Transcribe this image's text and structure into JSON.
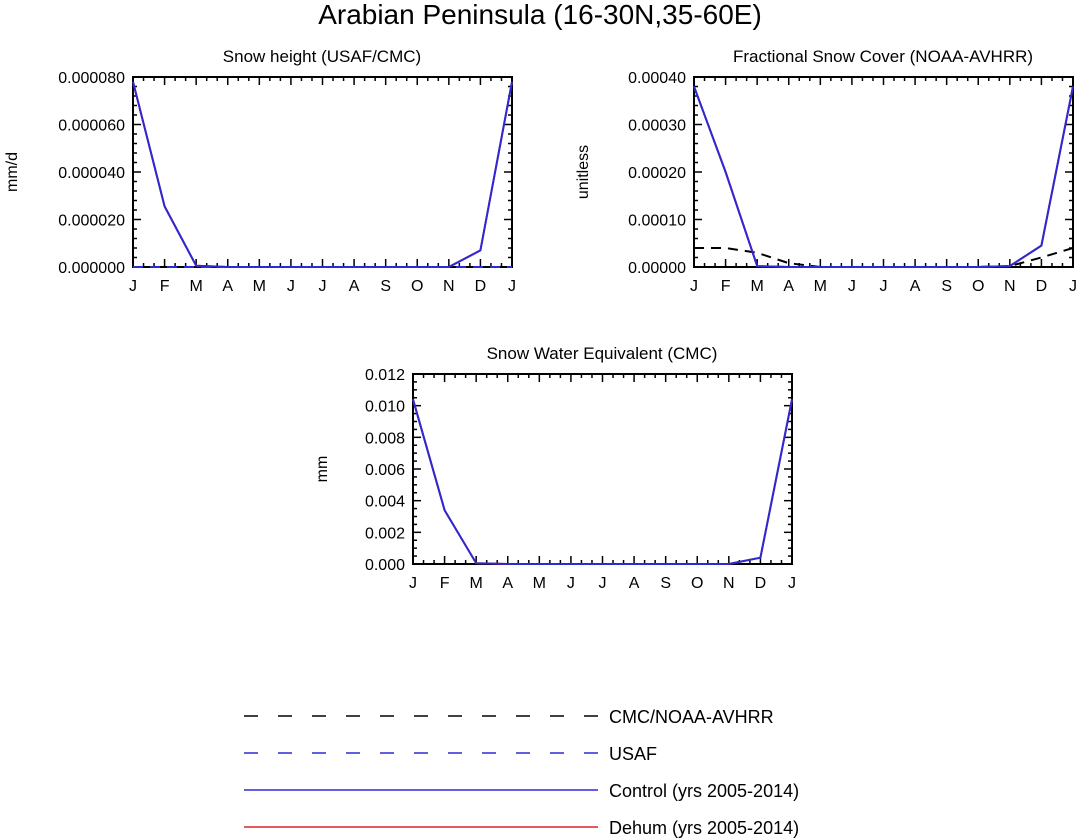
{
  "title": "Arabian Peninsula (16-30N,35-60E)",
  "months": [
    "J",
    "F",
    "M",
    "A",
    "M",
    "J",
    "J",
    "A",
    "S",
    "O",
    "N",
    "D",
    "J"
  ],
  "series_styles": {
    "obs_cmc": {
      "color": "#000000",
      "dash": "10,7"
    },
    "obs_usaf": {
      "color": "#2a2ad6",
      "dash": "10,7"
    },
    "control": {
      "color": "#2a2ad6",
      "dash": ""
    },
    "dehum": {
      "color": "#e02020",
      "dash": ""
    }
  },
  "legend": [
    {
      "key": "obs_cmc",
      "label": "CMC/NOAA-AVHRR"
    },
    {
      "key": "obs_usaf",
      "label": "USAF"
    },
    {
      "key": "control",
      "label": "Control (yrs 2005-2014)"
    },
    {
      "key": "dehum",
      "label": "Dehum (yrs 2005-2014)"
    }
  ],
  "chart_data": [
    {
      "type": "line",
      "title": "Snow height (USAF/CMC)",
      "ylabel": "mm/d",
      "xlabel": "",
      "ylim": [
        0,
        8e-05
      ],
      "yticks": [
        0,
        2e-05,
        4e-05,
        6e-05,
        8e-05
      ],
      "ytick_labels": [
        "0.000000",
        "0.000020",
        "0.000040",
        "0.000060",
        "0.000080"
      ],
      "categories": [
        "J",
        "F",
        "M",
        "A",
        "M",
        "J",
        "J",
        "A",
        "S",
        "O",
        "N",
        "D",
        "J"
      ],
      "series": [
        {
          "name": "USAF",
          "key": "obs_usaf",
          "values": [
            0,
            0,
            0,
            0,
            0,
            0,
            0,
            0,
            0,
            0,
            0,
            0,
            0
          ]
        },
        {
          "name": "Dehum (yrs 2005-2014)",
          "key": "dehum",
          "values": [
            7.8e-05,
            2.55e-05,
            5e-07,
            0,
            0,
            0,
            0,
            0,
            0,
            0,
            0,
            7e-06,
            7.8e-05
          ]
        },
        {
          "name": "Control (yrs 2005-2014)",
          "key": "control",
          "values": [
            7.8e-05,
            2.55e-05,
            5e-07,
            0,
            0,
            0,
            0,
            0,
            0,
            0,
            0,
            7e-06,
            7.8e-05
          ]
        }
      ]
    },
    {
      "type": "line",
      "title": "Fractional Snow Cover (NOAA-AVHRR)",
      "ylabel": "unitless",
      "xlabel": "",
      "ylim": [
        0,
        0.0004
      ],
      "yticks": [
        0,
        0.0001,
        0.0002,
        0.0003,
        0.0004
      ],
      "ytick_labels": [
        "0.00000",
        "0.00010",
        "0.00020",
        "0.00030",
        "0.00040"
      ],
      "categories": [
        "J",
        "F",
        "M",
        "A",
        "M",
        "J",
        "J",
        "A",
        "S",
        "O",
        "N",
        "D",
        "J"
      ],
      "series": [
        {
          "name": "CMC/NOAA-AVHRR",
          "key": "obs_cmc",
          "values": [
            4e-05,
            4e-05,
            3e-05,
            8e-06,
            0,
            0,
            0,
            0,
            0,
            0,
            2e-06,
            2e-05,
            4e-05
          ]
        },
        {
          "name": "Dehum (yrs 2005-2014)",
          "key": "dehum",
          "values": [
            0.00038,
            0.0002,
            2e-06,
            0,
            0,
            0,
            0,
            0,
            0,
            0,
            2e-06,
            4.5e-05,
            0.00038
          ]
        },
        {
          "name": "Control (yrs 2005-2014)",
          "key": "control",
          "values": [
            0.00038,
            0.0002,
            2e-06,
            0,
            0,
            0,
            0,
            0,
            0,
            0,
            2e-06,
            4.5e-05,
            0.00038
          ]
        }
      ]
    },
    {
      "type": "line",
      "title": "Snow Water Equivalent (CMC)",
      "ylabel": "mm",
      "xlabel": "",
      "ylim": [
        0,
        0.012
      ],
      "yticks": [
        0,
        0.002,
        0.004,
        0.006,
        0.008,
        0.01,
        0.012
      ],
      "ytick_labels": [
        "0.000",
        "0.002",
        "0.004",
        "0.006",
        "0.008",
        "0.010",
        "0.012"
      ],
      "categories": [
        "J",
        "F",
        "M",
        "A",
        "M",
        "J",
        "J",
        "A",
        "S",
        "O",
        "N",
        "D",
        "J"
      ],
      "series": [
        {
          "name": "CMC/NOAA-AVHRR",
          "key": "obs_cmc",
          "values": [
            0,
            0,
            0,
            0,
            0,
            0,
            0,
            0,
            0,
            0,
            0,
            0,
            0
          ]
        },
        {
          "name": "Dehum (yrs 2005-2014)",
          "key": "dehum",
          "values": [
            0.0104,
            0.0034,
            5e-05,
            0,
            0,
            0,
            0,
            0,
            0,
            0,
            0,
            0.0004,
            0.0104
          ]
        },
        {
          "name": "Control (yrs 2005-2014)",
          "key": "control",
          "values": [
            0.0104,
            0.0034,
            5e-05,
            0,
            0,
            0,
            0,
            0,
            0,
            0,
            0,
            0.0004,
            0.0104
          ]
        }
      ]
    }
  ]
}
